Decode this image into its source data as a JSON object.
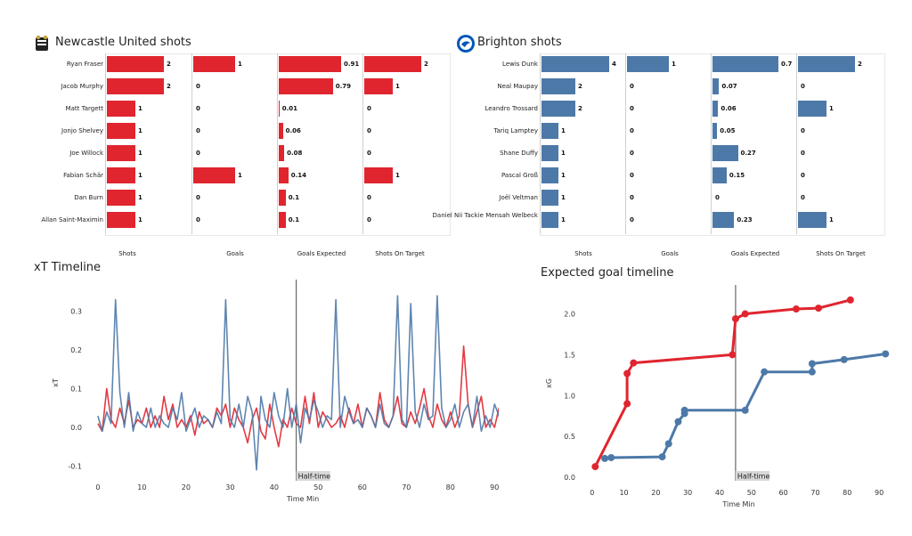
{
  "colors": {
    "newcastle": "#e0252f",
    "brighton": "#4d79a8",
    "halftime": "#666666"
  },
  "newcastle": {
    "title": "Newcastle United shots",
    "crest_icon": "newcastle-crest-icon",
    "players": [
      "Ryan Fraser",
      "Jacob Murphy",
      "Matt Targett",
      "Jonjo Shelvey",
      "Joe Willock",
      "Fabian Schär",
      "Dan Burn",
      "Allan Saint-Maximin"
    ],
    "shots": [
      2,
      2,
      1,
      1,
      1,
      1,
      1,
      1
    ],
    "goals": [
      1,
      0,
      0,
      0,
      0,
      1,
      0,
      0
    ],
    "xg": [
      0.91,
      0.79,
      0.01,
      0.06,
      0.08,
      0.14,
      0.1,
      0.1
    ],
    "on_target": [
      2,
      1,
      0,
      0,
      0,
      1,
      0,
      0
    ],
    "shots_label": [
      "2",
      "2",
      "1",
      "1",
      "1",
      "1",
      "1",
      "1"
    ],
    "goals_label": [
      "1",
      "0",
      "0",
      "0",
      "0",
      "1",
      "0",
      "0"
    ],
    "xg_label": [
      "0.91",
      "0.79",
      "0.01",
      "0.06",
      "0.08",
      "0.14",
      "0.1",
      "0.1"
    ],
    "on_target_label": [
      "2",
      "1",
      "0",
      "0",
      "0",
      "1",
      "0",
      "0"
    ]
  },
  "brighton": {
    "title": "Brighton shots",
    "crest_icon": "brighton-crest-icon",
    "players": [
      "Lewis Dunk",
      "Neal Maupay",
      "Leandro Trossard",
      "Tariq Lamptey",
      "Shane Duffy",
      "Pascal Groß",
      "Joël Veltman",
      "Daniel Nii Tackie Mensah Welbeck"
    ],
    "shots": [
      4,
      2,
      2,
      1,
      1,
      1,
      1,
      1
    ],
    "goals": [
      1,
      0,
      0,
      0,
      0,
      0,
      0,
      0
    ],
    "xg": [
      0.7,
      0.07,
      0.06,
      0.05,
      0.27,
      0.15,
      0,
      0.23
    ],
    "on_target": [
      2,
      0,
      1,
      0,
      0,
      0,
      0,
      1
    ],
    "shots_label": [
      "4",
      "2",
      "2",
      "1",
      "1",
      "1",
      "1",
      "1"
    ],
    "goals_label": [
      "1",
      "0",
      "0",
      "0",
      "0",
      "0",
      "0",
      "0"
    ],
    "xg_label": [
      "0.7",
      "0.07",
      "0.06",
      "0.05",
      "0.27",
      "0.15",
      "0",
      "0.23"
    ],
    "on_target_label": [
      "2",
      "0",
      "1",
      "0",
      "0",
      "0",
      "0",
      "1"
    ]
  },
  "columns": [
    "Shots",
    "Goals",
    "Goals Expected",
    "Shots On Target"
  ],
  "chart_data": [
    {
      "type": "bar",
      "title": "Newcastle United shots",
      "categories": [
        "Ryan Fraser",
        "Jacob Murphy",
        "Matt Targett",
        "Jonjo Shelvey",
        "Joe Willock",
        "Fabian Schär",
        "Dan Burn",
        "Allan Saint-Maximin"
      ],
      "series": [
        {
          "name": "Shots",
          "values": [
            2,
            2,
            1,
            1,
            1,
            1,
            1,
            1
          ]
        },
        {
          "name": "Goals",
          "values": [
            1,
            0,
            0,
            0,
            0,
            1,
            0,
            0
          ]
        },
        {
          "name": "Goals Expected",
          "values": [
            0.91,
            0.79,
            0.01,
            0.06,
            0.08,
            0.14,
            0.1,
            0.1
          ]
        },
        {
          "name": "Shots On Target",
          "values": [
            2,
            1,
            0,
            0,
            0,
            1,
            0,
            0
          ]
        }
      ]
    },
    {
      "type": "bar",
      "title": "Brighton shots",
      "categories": [
        "Lewis Dunk",
        "Neal Maupay",
        "Leandro Trossard",
        "Tariq Lamptey",
        "Shane Duffy",
        "Pascal Groß",
        "Joël Veltman",
        "Daniel Nii Tackie Mensah Welbeck"
      ],
      "series": [
        {
          "name": "Shots",
          "values": [
            4,
            2,
            2,
            1,
            1,
            1,
            1,
            1
          ]
        },
        {
          "name": "Goals",
          "values": [
            1,
            0,
            0,
            0,
            0,
            0,
            0,
            0
          ]
        },
        {
          "name": "Goals Expected",
          "values": [
            0.7,
            0.07,
            0.06,
            0.05,
            0.27,
            0.15,
            0,
            0.23
          ]
        },
        {
          "name": "Shots On Target",
          "values": [
            2,
            0,
            1,
            0,
            0,
            0,
            0,
            1
          ]
        }
      ]
    },
    {
      "type": "line",
      "title": "xT Timeline",
      "xlabel": "Time Min",
      "ylabel": "xT",
      "xlim": [
        -2,
        95
      ],
      "ylim": [
        -0.115,
        0.345
      ],
      "xticks": [
        0,
        10,
        20,
        30,
        40,
        50,
        60,
        70,
        80,
        90
      ],
      "xtick_labels": [
        "0",
        "10",
        "20",
        "30",
        "40",
        "50",
        "60",
        "70",
        "80",
        "90"
      ],
      "yticks": [
        -0.1,
        0,
        0.1,
        0.2,
        0.3
      ],
      "ytick_labels": [
        "-0.1",
        "0.0",
        "0.1",
        "0.2",
        "0.3"
      ],
      "halftime": 45,
      "halftime_label": "Half-time",
      "series": [
        {
          "x": [
            0,
            1,
            2,
            3,
            4,
            5,
            6,
            7,
            8,
            9,
            10,
            11,
            12,
            13,
            14,
            15,
            16,
            17,
            18,
            19,
            20,
            21,
            22,
            23,
            24,
            25,
            26,
            27,
            28,
            29,
            30,
            31,
            32,
            33,
            34,
            35,
            36,
            37,
            38,
            39,
            40,
            41,
            42,
            43,
            44,
            45,
            46,
            47,
            48,
            49,
            50,
            51,
            52,
            53,
            54,
            55,
            56,
            57,
            58,
            59,
            60,
            61,
            62,
            63,
            64,
            65,
            66,
            67,
            68,
            69,
            70,
            71,
            72,
            73,
            74,
            75,
            76,
            77,
            78,
            79,
            80,
            81,
            82,
            83,
            84,
            85,
            86,
            87,
            88,
            89,
            90,
            91,
            92,
            93,
            94
          ],
          "y": [
            0.01,
            -0.01,
            0.1,
            0.02,
            0.0,
            0.05,
            0.01,
            0.07,
            0.0,
            0.02,
            0.01,
            0.05,
            0.0,
            0.03,
            0.0,
            0.08,
            0.02,
            0.06,
            0.0,
            0.02,
            0.0,
            0.03,
            -0.02,
            0.04,
            0.01,
            0.02,
            0.0,
            0.05,
            0.03,
            0.06,
            0.0,
            0.05,
            0.02,
            0.0,
            -0.04,
            0.02,
            0.05,
            -0.01,
            -0.03,
            0.06,
            0.0,
            -0.05,
            0.02,
            0.0,
            0.05,
            0.01,
            0.0,
            0.08,
            0.01,
            0.09,
            0.0,
            0.04,
            0.02,
            0.0,
            0.01,
            0.03,
            0.0,
            0.05,
            0.01,
            0.06,
            0.0,
            0.05,
            0.03,
            0.0,
            0.09,
            0.02,
            0.0,
            0.03,
            0.08,
            0.01,
            0.0,
            0.04,
            0.01,
            0.05,
            0.1,
            0.03,
            0.0,
            0.06,
            0.02,
            0.0,
            0.04,
            0.0,
            0.03,
            0.21,
            0.06,
            0.0,
            0.04,
            0.08,
            0.0,
            0.02,
            0.0,
            0.05,
            0.02,
            0.08,
            0.01
          ]
        },
        {
          "x": [
            0,
            1,
            2,
            3,
            4,
            5,
            6,
            7,
            8,
            9,
            10,
            11,
            12,
            13,
            14,
            15,
            16,
            17,
            18,
            19,
            20,
            21,
            22,
            23,
            24,
            25,
            26,
            27,
            28,
            29,
            30,
            31,
            32,
            33,
            34,
            35,
            36,
            37,
            38,
            39,
            40,
            41,
            42,
            43,
            44,
            45,
            46,
            47,
            48,
            49,
            50,
            51,
            52,
            53,
            54,
            55,
            56,
            57,
            58,
            59,
            60,
            61,
            62,
            63,
            64,
            65,
            66,
            67,
            68,
            69,
            70,
            71,
            72,
            73,
            74,
            75,
            76,
            77,
            78,
            79,
            80,
            81,
            82,
            83,
            84,
            85,
            86,
            87,
            88,
            89,
            90,
            91,
            92,
            93,
            94
          ],
          "y": [
            0.03,
            -0.01,
            0.04,
            0.01,
            0.33,
            0.09,
            0.0,
            0.09,
            -0.01,
            0.04,
            0.01,
            0.0,
            0.05,
            0.0,
            0.03,
            0.01,
            0.0,
            0.05,
            0.02,
            0.09,
            -0.01,
            0.02,
            0.05,
            0.0,
            0.03,
            0.02,
            0.0,
            0.04,
            0.01,
            0.33,
            0.02,
            0.0,
            0.06,
            0.0,
            0.08,
            0.04,
            -0.11,
            0.08,
            0.02,
            0.0,
            0.09,
            0.03,
            0.0,
            0.1,
            0.0,
            0.06,
            -0.04,
            0.05,
            0.02,
            0.07,
            0.04,
            0.0,
            0.03,
            0.02,
            0.33,
            0.0,
            0.08,
            0.04,
            0.01,
            0.02,
            0.0,
            0.05,
            0.03,
            0.0,
            0.06,
            0.01,
            0.0,
            0.03,
            0.34,
            0.02,
            0.0,
            0.32,
            0.04,
            0.0,
            0.06,
            0.02,
            0.03,
            0.34,
            0.05,
            0.0,
            0.02,
            0.06,
            0.0,
            0.04,
            0.06,
            0.0,
            0.08,
            -0.01,
            0.03,
            0.0,
            0.06,
            0.03,
            -0.03,
            0.08,
            -0.03
          ]
        }
      ]
    },
    {
      "type": "line",
      "title": "Expected goal timeline",
      "xlabel": "Time Min",
      "ylabel": "xG",
      "xlim": [
        -3,
        95
      ],
      "ylim": [
        0,
        2.3
      ],
      "xticks": [
        0,
        10,
        20,
        30,
        40,
        50,
        60,
        70,
        80,
        90
      ],
      "xtick_labels": [
        "0",
        "10",
        "20",
        "30",
        "40",
        "50",
        "60",
        "70",
        "80",
        "90"
      ],
      "yticks": [
        0,
        0.5,
        1.0,
        1.5,
        2.0
      ],
      "ytick_labels": [
        "0.0",
        "0.5",
        "1.0",
        "1.5",
        "2.0"
      ],
      "halftime": 45,
      "halftime_label": "Half-time",
      "series": [
        {
          "x": [
            1,
            11,
            11,
            13,
            44,
            45,
            48,
            64,
            71,
            81
          ],
          "y": [
            0.13,
            0.9,
            1.27,
            1.4,
            1.5,
            1.94,
            2.0,
            2.06,
            2.07,
            2.17
          ]
        },
        {
          "x": [
            4,
            6,
            22,
            24,
            27,
            29,
            29,
            48,
            54,
            69,
            69,
            79,
            92
          ],
          "y": [
            0.23,
            0.24,
            0.25,
            0.41,
            0.68,
            0.78,
            0.82,
            0.82,
            1.29,
            1.29,
            1.39,
            1.44,
            1.51
          ]
        }
      ]
    }
  ]
}
